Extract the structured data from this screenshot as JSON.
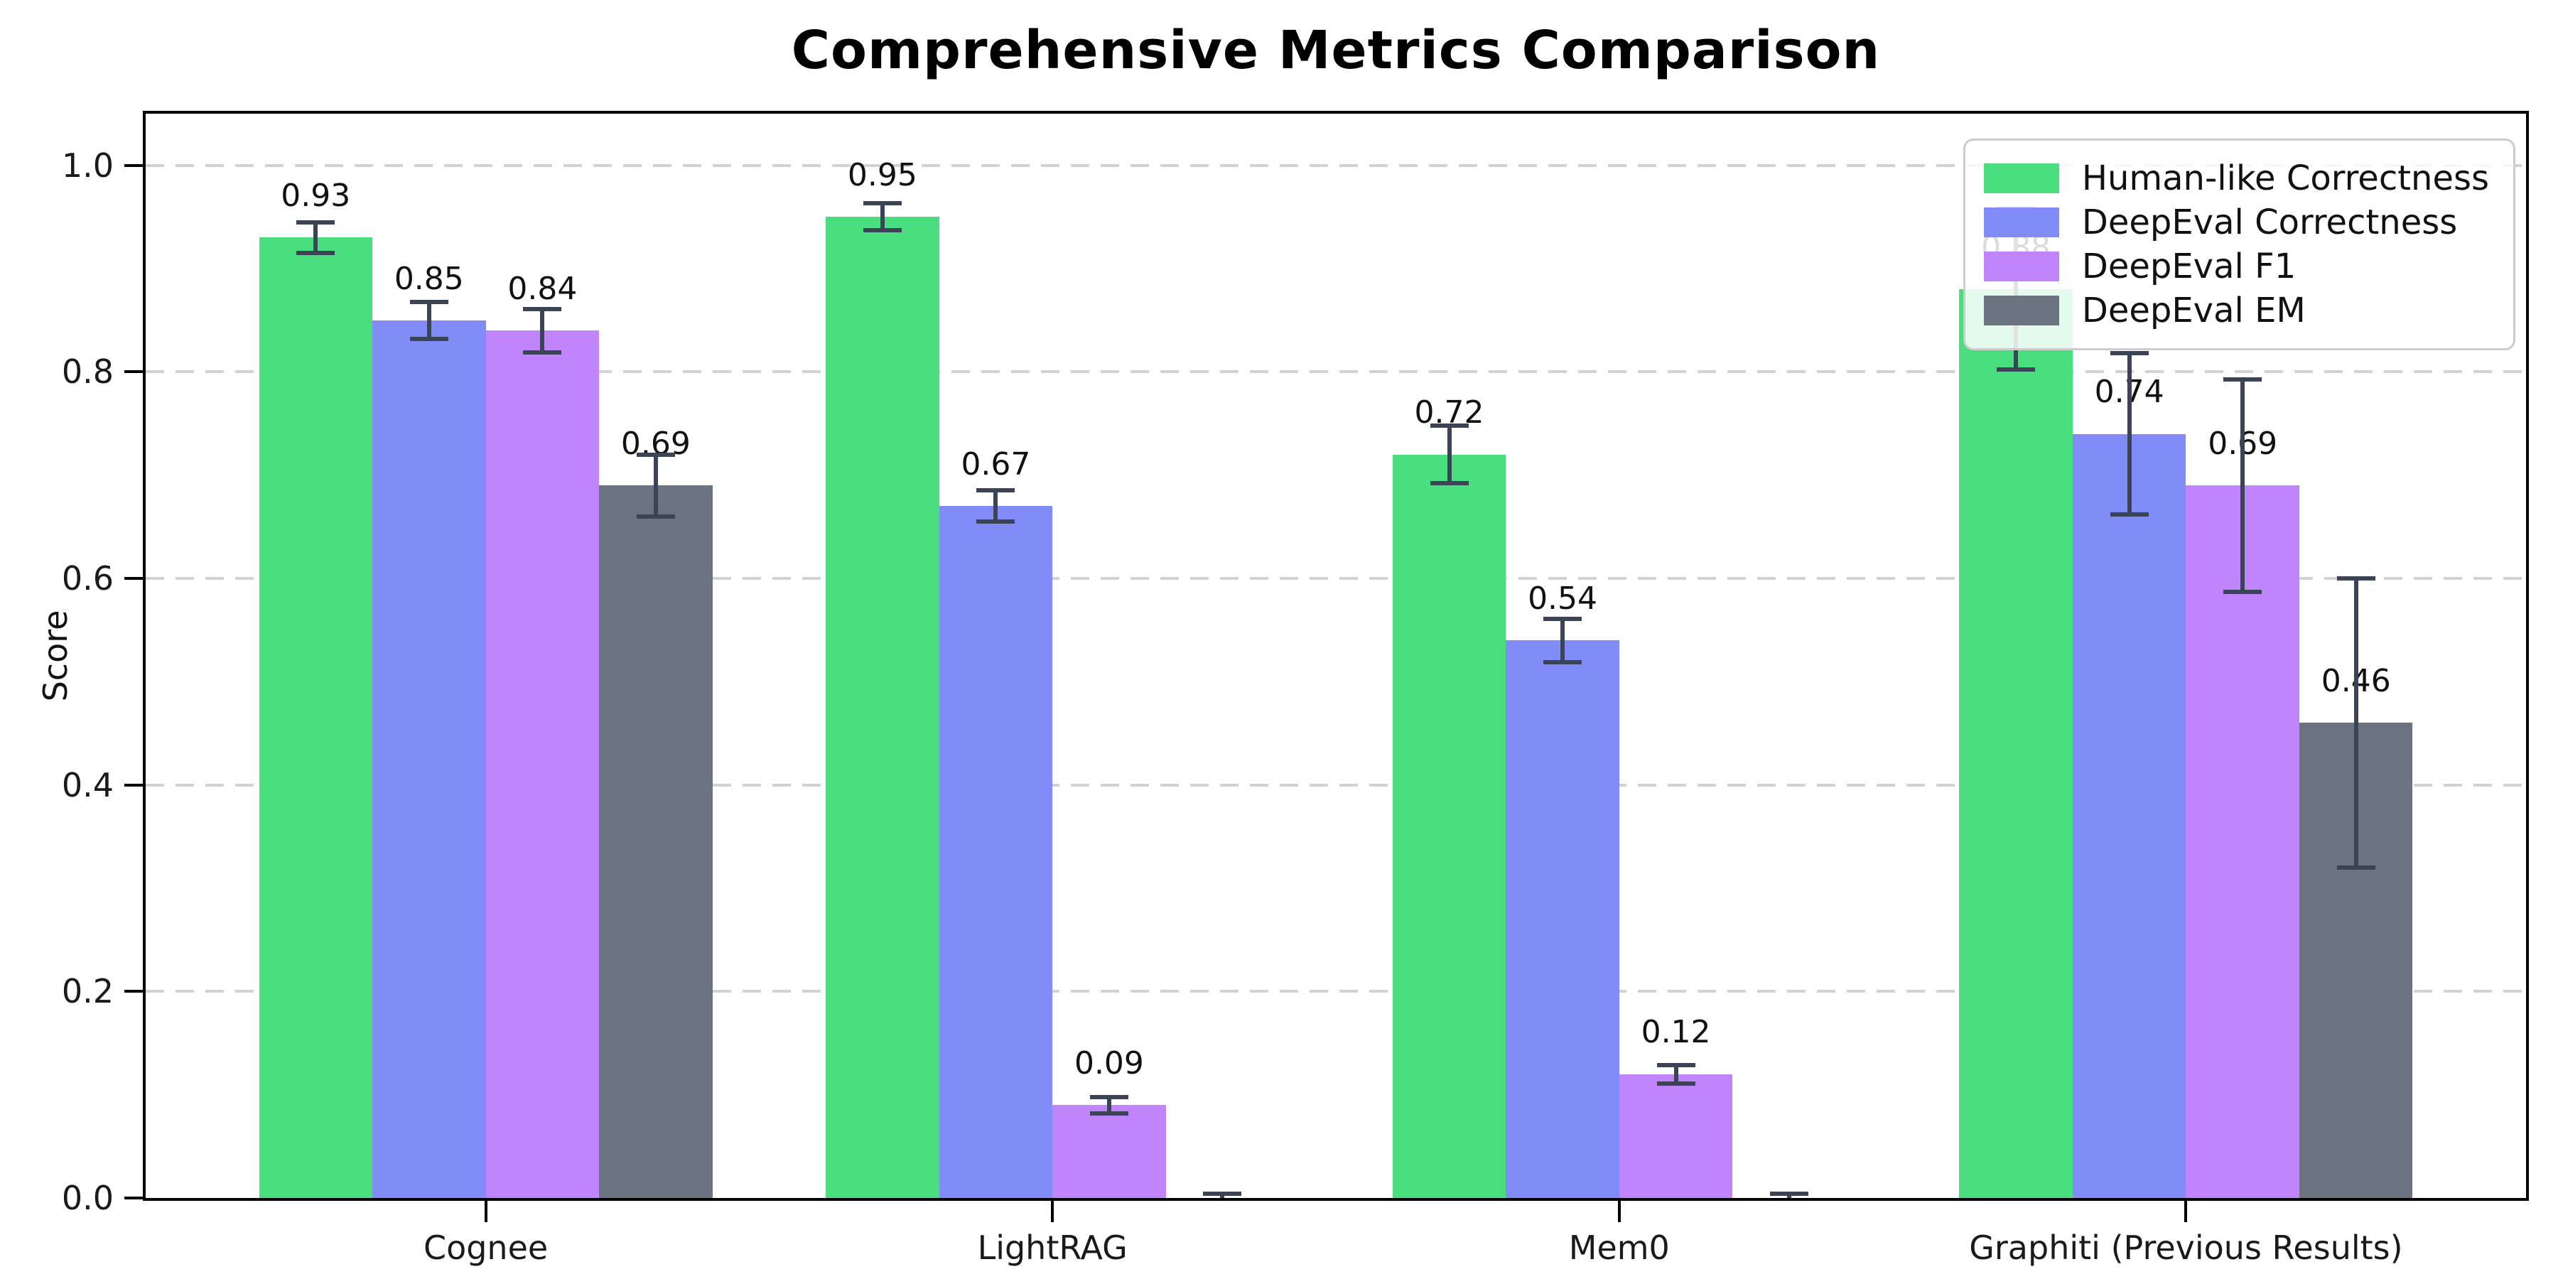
{
  "chart_data": {
    "type": "bar",
    "title": "Comprehensive Metrics Comparison",
    "xlabel": "",
    "ylabel": "Score",
    "ylim": [
      0,
      1.05
    ],
    "ytick_labels": [
      "0.0",
      "0.2",
      "0.4",
      "0.6",
      "0.8",
      "1.0"
    ],
    "ytick_values": [
      0.0,
      0.2,
      0.4,
      0.6,
      0.8,
      1.0
    ],
    "grid": "horizontal-dashed",
    "legend_position": "upper right",
    "categories": [
      "Cognee",
      "LightRAG",
      "Mem0",
      "Graphiti (Previous Results)"
    ],
    "series": [
      {
        "name": "Human-like Correctness",
        "color": "#4ade80",
        "values": [
          0.93,
          0.95,
          0.72,
          0.88
        ],
        "errors": [
          0.015,
          0.013,
          0.028,
          0.078
        ],
        "labels": [
          "0.93",
          "0.95",
          "0.72",
          "0.88"
        ]
      },
      {
        "name": "DeepEval Correctness",
        "color": "#818cf8",
        "values": [
          0.85,
          0.67,
          0.54,
          0.74
        ],
        "errors": [
          0.018,
          0.015,
          0.021,
          0.078
        ],
        "labels": [
          "0.85",
          "0.67",
          "0.54",
          "0.74"
        ]
      },
      {
        "name": "DeepEval F1",
        "color": "#c084fc",
        "values": [
          0.84,
          0.09,
          0.12,
          0.69
        ],
        "errors": [
          0.021,
          0.008,
          0.009,
          0.103
        ],
        "labels": [
          "0.84",
          "0.09",
          "0.12",
          "0.69"
        ]
      },
      {
        "name": "DeepEval EM",
        "color": "#6b7280",
        "values": [
          0.69,
          0.0,
          0.0,
          0.46
        ],
        "errors": [
          0.03,
          0.004,
          0.004,
          0.14
        ],
        "labels": [
          "0.69",
          "",
          "",
          "0.46"
        ]
      }
    ],
    "style": {
      "error_bar_color": "#3b4454",
      "grid_color": "#d2d2d2",
      "spine_color": "#000000",
      "background": "#ffffff"
    }
  }
}
